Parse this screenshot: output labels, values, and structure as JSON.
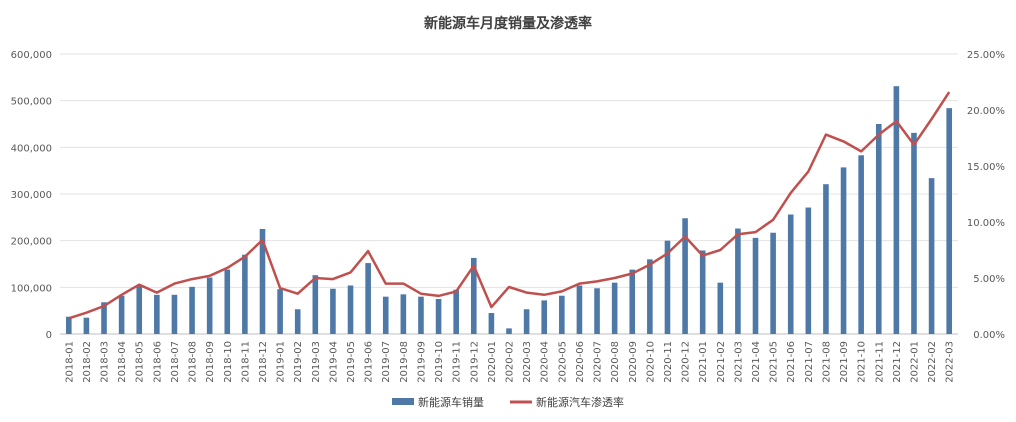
{
  "chart_data": {
    "type": "bar",
    "title": "新能源车月度销量及渗透率",
    "categories": [
      "2018-01",
      "2018-02",
      "2018-03",
      "2018-04",
      "2018-05",
      "2018-06",
      "2018-07",
      "2018-08",
      "2018-09",
      "2018-10",
      "2018-11",
      "2018-12",
      "2019-01",
      "2019-02",
      "2019-03",
      "2019-04",
      "2019-05",
      "2019-06",
      "2019-07",
      "2019-08",
      "2019-09",
      "2019-10",
      "2019-11",
      "2019-12",
      "2020-01",
      "2020-02",
      "2020-03",
      "2020-04",
      "2020-05",
      "2020-06",
      "2020-07",
      "2020-08",
      "2020-09",
      "2020-10",
      "2020-11",
      "2020-12",
      "2021-01",
      "2021-02",
      "2021-03",
      "2021-04",
      "2021-05",
      "2021-06",
      "2021-07",
      "2021-08",
      "2021-09",
      "2021-10",
      "2021-11",
      "2021-12",
      "2022-01",
      "2022-02",
      "2022-03"
    ],
    "series": [
      {
        "name": "新能源车销量",
        "type": "bar",
        "axis": "left",
        "color": "#4e79a7",
        "values": [
          37000,
          35000,
          68000,
          82000,
          102000,
          84000,
          84000,
          101000,
          121000,
          138000,
          170000,
          225000,
          96000,
          53000,
          126000,
          97000,
          104000,
          152000,
          80000,
          85000,
          80000,
          75000,
          95000,
          163000,
          45000,
          12000,
          53000,
          72000,
          82000,
          104000,
          98000,
          110000,
          138000,
          160000,
          200000,
          248000,
          179000,
          110000,
          226000,
          206000,
          217000,
          256000,
          271000,
          321000,
          357000,
          383000,
          450000,
          531000,
          431000,
          334000,
          484000
        ]
      },
      {
        "name": "新能源汽车渗透率",
        "type": "line",
        "axis": "right",
        "color": "#c0504d",
        "values": [
          1.4,
          1.9,
          2.5,
          3.5,
          4.4,
          3.7,
          4.5,
          4.9,
          5.2,
          5.9,
          6.9,
          8.4,
          4.1,
          3.6,
          5.0,
          4.9,
          5.5,
          7.4,
          4.5,
          4.5,
          3.6,
          3.4,
          3.8,
          6.1,
          2.4,
          4.2,
          3.7,
          3.5,
          3.8,
          4.5,
          4.7,
          5.0,
          5.4,
          6.2,
          7.2,
          8.7,
          7.0,
          7.5,
          8.9,
          9.1,
          10.2,
          12.6,
          14.5,
          17.8,
          17.2,
          16.3,
          17.8,
          19.0,
          16.9,
          19.2,
          21.6
        ]
      }
    ],
    "y_left": {
      "min": 0,
      "max": 600000,
      "ticks": [
        "0",
        "100,000",
        "200,000",
        "300,000",
        "400,000",
        "500,000",
        "600,000"
      ]
    },
    "y_right": {
      "min": 0,
      "max": 25,
      "ticks": [
        "0.00%",
        "5.00%",
        "10.00%",
        "15.00%",
        "20.00%",
        "25.00%"
      ]
    },
    "grid": true,
    "legend_position": "bottom"
  }
}
